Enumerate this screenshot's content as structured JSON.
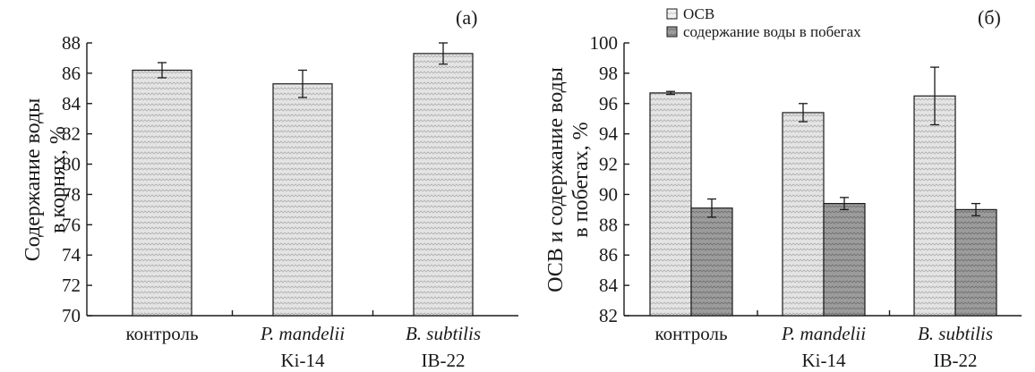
{
  "chart_data": [
    {
      "type": "bar",
      "panel_label": "(а)",
      "ylabel_lines": [
        "Содержание воды",
        "в корнях, %"
      ],
      "categories": [
        {
          "line1": "контроль",
          "line1_italic": false,
          "line2": ""
        },
        {
          "line1": "P. mandelii",
          "line1_italic": true,
          "line2": "Ki-14"
        },
        {
          "line1": "B. subtilis",
          "line1_italic": true,
          "line2": "IB-22"
        }
      ],
      "ylim": [
        70,
        88
      ],
      "yticks": [
        70,
        72,
        74,
        76,
        78,
        80,
        82,
        84,
        86,
        88
      ],
      "series": [
        {
          "values": [
            86.2,
            85.3,
            87.3
          ],
          "errors": [
            0.5,
            0.9,
            0.7
          ],
          "color": "#cfcfcf",
          "pattern": "light"
        }
      ]
    },
    {
      "type": "bar",
      "panel_label": "(б)",
      "ylabel_lines": [
        "ОСВ и содержание воды",
        "в побегах, %"
      ],
      "categories": [
        {
          "line1": "контроль",
          "line1_italic": false,
          "line2": ""
        },
        {
          "line1": "P. mandelii",
          "line1_italic": true,
          "line2": "Ki-14"
        },
        {
          "line1": "B. subtilis",
          "line1_italic": true,
          "line2": "IB-22"
        }
      ],
      "ylim": [
        82,
        100
      ],
      "yticks": [
        82,
        84,
        86,
        88,
        90,
        92,
        94,
        96,
        98,
        100
      ],
      "legend_position": "top",
      "series": [
        {
          "name": "ОСВ",
          "values": [
            96.7,
            95.4,
            96.5
          ],
          "errors": [
            0.1,
            0.6,
            1.9
          ],
          "color": "#ececec",
          "pattern": "light"
        },
        {
          "name": "содержание воды в побегах",
          "values": [
            89.1,
            89.4,
            89.0
          ],
          "errors": [
            0.6,
            0.4,
            0.4
          ],
          "color": "#9a9a9a",
          "pattern": "dark"
        }
      ]
    }
  ]
}
